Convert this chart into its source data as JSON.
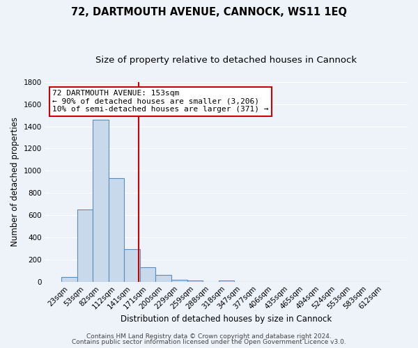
{
  "title": "72, DARTMOUTH AVENUE, CANNOCK, WS11 1EQ",
  "subtitle": "Size of property relative to detached houses in Cannock",
  "xlabel": "Distribution of detached houses by size in Cannock",
  "ylabel": "Number of detached properties",
  "bar_labels": [
    "23sqm",
    "53sqm",
    "82sqm",
    "112sqm",
    "141sqm",
    "171sqm",
    "200sqm",
    "229sqm",
    "259sqm",
    "288sqm",
    "318sqm",
    "347sqm",
    "377sqm",
    "406sqm",
    "435sqm",
    "465sqm",
    "494sqm",
    "524sqm",
    "553sqm",
    "583sqm",
    "612sqm"
  ],
  "bar_values": [
    40,
    650,
    1460,
    935,
    290,
    130,
    60,
    20,
    10,
    0,
    10,
    0,
    0,
    0,
    0,
    0,
    0,
    0,
    0,
    0,
    0
  ],
  "bar_color": "#c9d9ec",
  "bar_edge_color": "#5b8db8",
  "ylim": [
    0,
    1800
  ],
  "yticks": [
    0,
    200,
    400,
    600,
    800,
    1000,
    1200,
    1400,
    1600,
    1800
  ],
  "vline_color": "#cc0000",
  "property_sqm": 153,
  "annotation_box_text": "72 DARTMOUTH AVENUE: 153sqm\n← 90% of detached houses are smaller (3,206)\n10% of semi-detached houses are larger (371) →",
  "footer_line1": "Contains HM Land Registry data © Crown copyright and database right 2024.",
  "footer_line2": "Contains public sector information licensed under the Open Government Licence v3.0.",
  "background_color": "#eef2f9",
  "grid_color": "#ffffff",
  "title_fontsize": 10.5,
  "subtitle_fontsize": 9.5,
  "axis_label_fontsize": 8.5,
  "tick_fontsize": 7.5,
  "annotation_fontsize": 8,
  "footer_fontsize": 6.5
}
